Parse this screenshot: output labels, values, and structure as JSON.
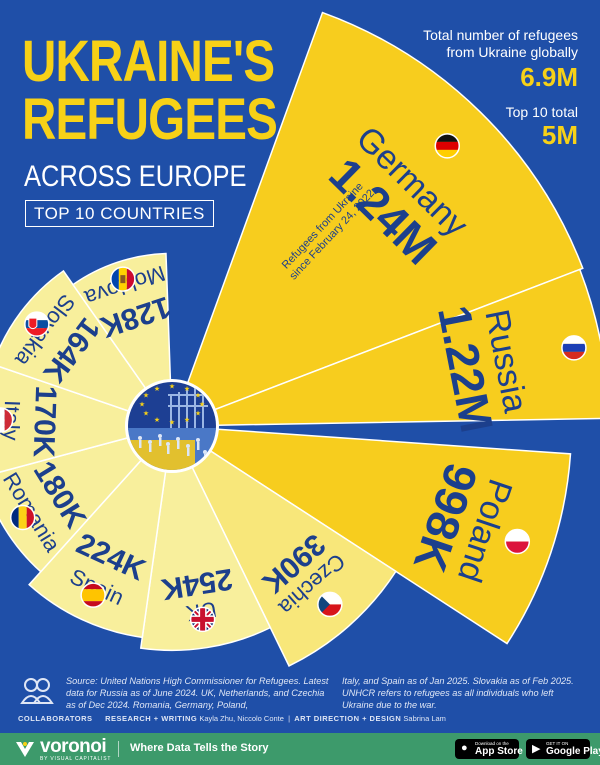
{
  "header": {
    "title_line1": "UKRAINE'S",
    "title_line2": "REFUGEES",
    "subtitle": "ACROSS EUROPE",
    "badge": "TOP 10 COUNTRIES"
  },
  "stats": {
    "global_label_1": "Total number of refugees",
    "global_label_2": "from Ukraine globally",
    "global_value": "6.9M",
    "top10_label": "Top 10 total",
    "top10_value": "5M"
  },
  "annotation": {
    "line1": "Refugees from Ukraine",
    "line2": "since February 24, 2022"
  },
  "chart_data": {
    "type": "polar-area",
    "unit": "refugees",
    "categories": [
      "Germany",
      "Russia",
      "Poland",
      "Czechia",
      "UK",
      "Spain",
      "Romania",
      "Italy",
      "Slovakia",
      "Moldova"
    ],
    "values": [
      1240000,
      1220000,
      998000,
      390000,
      254000,
      224000,
      180000,
      170000,
      164000,
      128000
    ],
    "value_labels": [
      "1.24M",
      "1.22M",
      "998K",
      "390K",
      "254K",
      "224K",
      "180K",
      "170K",
      "164K",
      "128K"
    ],
    "flags": [
      "germany-flag",
      "russia-flag",
      "poland-flag",
      "czechia-flag",
      "uk-flag",
      "spain-flag",
      "romania-flag",
      "italy-flag",
      "slovakia-flag",
      "moldova-flag"
    ]
  },
  "source": {
    "col1": "Source: United Nations High Commissioner for Refugees. Latest data for Russia as of June 2024. UK, Netherlands, and Czechia as of Dec 2024. Romania, Germany, Poland,",
    "col2": "Italy, and Spain as of Jan 2025. Slovakia as of Feb 2025. UNHCR refers to refugees as all individuals who left Ukraine due to the war."
  },
  "credits": {
    "collaborators": "COLLABORATORS",
    "research_label": "RESEARCH + WRITING",
    "research_names": "Kayla Zhu, Niccolo Conte",
    "art_label": "ART DIRECTION + DESIGN",
    "art_names": "Sabrina Lam"
  },
  "footer": {
    "brand": "voronoi",
    "brand_sub": "BY VISUAL CAPITALIST",
    "tagline": "Where Data Tells the Story",
    "appstore_small": "Download on the",
    "appstore_big": "App Store",
    "play_small": "GET IT ON",
    "play_big": "Google Play"
  },
  "colors": {
    "background": "#1f4fa8",
    "accent": "#f7d117",
    "sector_yellow": "#f7cd1e",
    "sector_pale": "#f8ef9c",
    "text_blue": "#1c3f8c",
    "footer_green": "#3d9a6b"
  }
}
